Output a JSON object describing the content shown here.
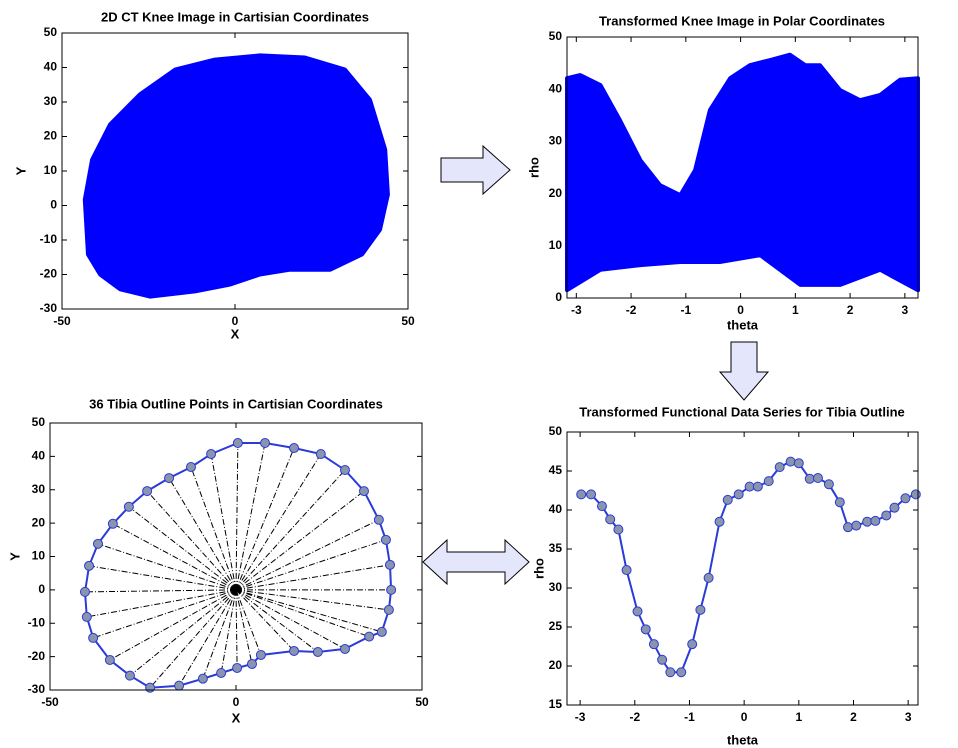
{
  "chart_data": [
    {
      "type": "region",
      "title": "2D CT Knee Image in Cartisian Coordinates",
      "xlabel": "X",
      "ylabel": "Y",
      "x": [
        -43.4,
        -41.3,
        -36.1,
        -27.5,
        -17.3,
        -5.8,
        7.2,
        20.2,
        31.8,
        39,
        43.4,
        44.2,
        41.9,
        36.7,
        27.5,
        15.9,
        7.2,
        -1.4,
        -11.6,
        -24.6,
        -33.2,
        -39,
        -42.5
      ],
      "y": [
        1.7,
        13.3,
        23.5,
        32.2,
        39.4,
        42.3,
        43.5,
        42.9,
        39.4,
        30.7,
        16.2,
        3.2,
        -7,
        -14.2,
        -18.6,
        -18.6,
        -20,
        -22.9,
        -24.9,
        -26.4,
        -24.3,
        -20,
        -14.2
      ],
      "xlim": [
        -50,
        50
      ],
      "ylim": [
        -30,
        50
      ],
      "xticks": [
        -50,
        0,
        50
      ],
      "yticks": [
        -30,
        -20,
        -10,
        0,
        10,
        20,
        30,
        40,
        50
      ],
      "color": "#0000ff"
    },
    {
      "type": "region",
      "title": "Transformed Knee Image in Polar Coordinates",
      "xlabel": "theta",
      "ylabel": "rho",
      "x": [
        -3.17,
        -2.93,
        -2.56,
        -2.2,
        -1.83,
        -1.47,
        -1.1,
        -0.83,
        -0.56,
        -0.19,
        0.17,
        0.54,
        0.9,
        1.18,
        1.45,
        1.82,
        2.18,
        2.55,
        2.91,
        3.24,
        3.24,
        2.55,
        1.82,
        1.09,
        0.36,
        -0.38,
        -1.1,
        -1.83,
        -2.56,
        -3.17
      ],
      "y": [
        42.1,
        42.7,
        40.8,
        34,
        26.4,
        21.6,
        19.7,
        24.5,
        36,
        42.1,
        44.6,
        45.6,
        46.6,
        44.6,
        44.6,
        39.8,
        37.9,
        38.9,
        41.8,
        42.1,
        1.5,
        5.4,
        2.5,
        2.5,
        8.2,
        6.9,
        6.9,
        6.3,
        5.4,
        1.5
      ],
      "xlim": [
        -3.17,
        3.24
      ],
      "ylim": [
        0,
        50
      ],
      "xticks": [
        -3,
        -2,
        -1,
        0,
        1,
        2,
        3
      ],
      "yticks": [
        0,
        10,
        20,
        30,
        40,
        50
      ],
      "color": "#0000ff"
    },
    {
      "type": "scatter",
      "title": "36 Tibia Outline Points in Cartisian Coordinates",
      "xlabel": "X",
      "ylabel": "Y",
      "x": [
        0.5,
        7.8,
        15.6,
        22.8,
        29.3,
        34.4,
        38.4,
        40.3,
        41.4,
        41.7,
        41.1,
        39.2,
        35.8,
        29.3,
        22,
        15.6,
        6.7,
        4.3,
        0.3,
        -4,
        -8.9,
        -15.3,
        -23.1,
        -28.5,
        -33.9,
        -38.4,
        -40.1,
        -40.6,
        -39.5,
        -37.1,
        -33.1,
        -28.8,
        -23.9,
        -18,
        -12.1,
        -6.7
      ],
      "y": [
        44,
        44,
        42.5,
        40.7,
        35.9,
        29.6,
        21,
        15,
        7.5,
        0,
        -6,
        -12.6,
        -14,
        -17.7,
        -18.6,
        -18.3,
        -19.5,
        -22.2,
        -23.4,
        -24.9,
        -26.6,
        -28.7,
        -29.3,
        -25.7,
        -21,
        -14.4,
        -8.1,
        -0.6,
        7.2,
        13.8,
        19.8,
        24.9,
        29.6,
        33.5,
        36.8,
        40.7
      ],
      "xlim": [
        -50,
        50
      ],
      "ylim": [
        -30,
        50
      ],
      "xticks": [
        -50,
        0,
        50
      ],
      "yticks": [
        -30,
        -20,
        -10,
        0,
        10,
        20,
        30,
        40,
        50
      ],
      "color": "#2a3bd6",
      "marker_color": "#8a94ad",
      "rays": true
    },
    {
      "type": "line",
      "title": "Transformed Functional Data Series for Tibia Outline",
      "xlabel": "theta",
      "ylabel": "rho",
      "x": [
        -2.98,
        -2.8,
        -2.6,
        -2.45,
        -2.3,
        -2.15,
        -1.95,
        -1.8,
        -1.65,
        -1.5,
        -1.35,
        -1.15,
        -0.95,
        -0.8,
        -0.65,
        -0.45,
        -0.3,
        -0.1,
        0.1,
        0.25,
        0.45,
        0.65,
        0.85,
        1.0,
        1.2,
        1.35,
        1.55,
        1.75,
        1.9,
        2.05,
        2.25,
        2.4,
        2.6,
        2.75,
        2.95,
        3.14
      ],
      "values": [
        42,
        42,
        40.5,
        38.8,
        37.5,
        32.3,
        27,
        24.7,
        22.8,
        20.8,
        19.2,
        19.2,
        22.8,
        27.2,
        31.3,
        38.5,
        41.3,
        42,
        43,
        43,
        43.7,
        45.5,
        46.2,
        46,
        44,
        44.1,
        43.3,
        41,
        37.8,
        38,
        38.5,
        38.6,
        39.3,
        40.3,
        41.5,
        42
      ],
      "xlim": [
        -3.24,
        3.18
      ],
      "ylim": [
        15,
        50
      ],
      "xticks": [
        -3,
        -2,
        -1,
        0,
        1,
        2,
        3
      ],
      "yticks": [
        15,
        20,
        25,
        30,
        35,
        40,
        45,
        50
      ],
      "color": "#2a3bd6",
      "marker_color": "#8a94ad"
    }
  ]
}
